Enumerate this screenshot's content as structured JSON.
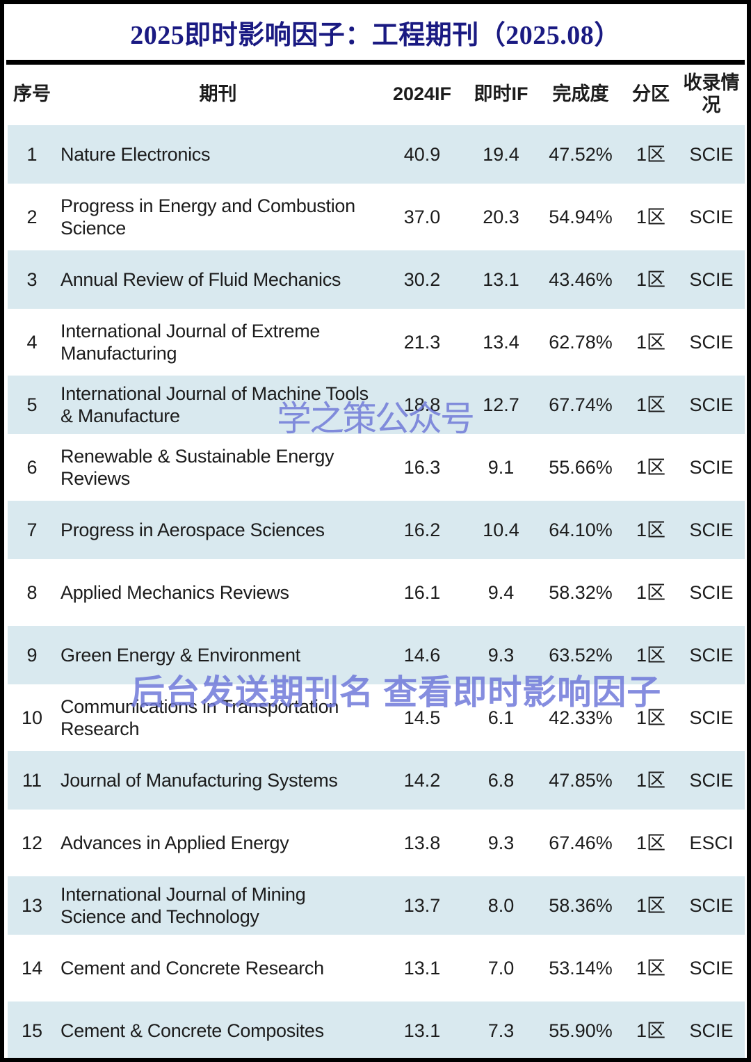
{
  "title": "2025即时影响因子：工程期刊（2025.08）",
  "watermarks": {
    "wm1": "学之策公众号",
    "wm2": "后台发送期刊名 查看即时影响因子"
  },
  "colors": {
    "title_navy": "#1a1a82",
    "row_blue": "#d9e9ef",
    "watermark_periwinkle": "#6a74d5",
    "frame_black": "#000000"
  },
  "table": {
    "headers": [
      "序号",
      "期刊",
      "2024IF",
      "即时IF",
      "完成度",
      "分区",
      "收录情况"
    ],
    "rows": [
      {
        "seq": "1",
        "journal": "Nature Electronics",
        "if2024": "40.9",
        "rt_if": "19.4",
        "completion": "47.52%",
        "zone": "1区",
        "index": "SCIE"
      },
      {
        "seq": "2",
        "journal": "Progress in Energy and Combustion Science",
        "if2024": "37.0",
        "rt_if": "20.3",
        "completion": "54.94%",
        "zone": "1区",
        "index": "SCIE"
      },
      {
        "seq": "3",
        "journal": "Annual Review of Fluid Mechanics",
        "if2024": "30.2",
        "rt_if": "13.1",
        "completion": "43.46%",
        "zone": "1区",
        "index": "SCIE"
      },
      {
        "seq": "4",
        "journal": "International Journal of Extreme Manufacturing",
        "if2024": "21.3",
        "rt_if": "13.4",
        "completion": "62.78%",
        "zone": "1区",
        "index": "SCIE"
      },
      {
        "seq": "5",
        "journal": "International Journal of Machine Tools & Manufacture",
        "if2024": "18.8",
        "rt_if": "12.7",
        "completion": "67.74%",
        "zone": "1区",
        "index": "SCIE"
      },
      {
        "seq": "6",
        "journal": "Renewable & Sustainable Energy Reviews",
        "if2024": "16.3",
        "rt_if": "9.1",
        "completion": "55.66%",
        "zone": "1区",
        "index": "SCIE"
      },
      {
        "seq": "7",
        "journal": "Progress in Aerospace Sciences",
        "if2024": "16.2",
        "rt_if": "10.4",
        "completion": "64.10%",
        "zone": "1区",
        "index": "SCIE"
      },
      {
        "seq": "8",
        "journal": "Applied Mechanics Reviews",
        "if2024": "16.1",
        "rt_if": "9.4",
        "completion": "58.32%",
        "zone": "1区",
        "index": "SCIE"
      },
      {
        "seq": "9",
        "journal": "Green Energy & Environment",
        "if2024": "14.6",
        "rt_if": "9.3",
        "completion": "63.52%",
        "zone": "1区",
        "index": "SCIE"
      },
      {
        "seq": "10",
        "journal": "Communications in Transportation Research",
        "if2024": "14.5",
        "rt_if": "6.1",
        "completion": "42.33%",
        "zone": "1区",
        "index": "SCIE"
      },
      {
        "seq": "11",
        "journal": "Journal of Manufacturing Systems",
        "if2024": "14.2",
        "rt_if": "6.8",
        "completion": "47.85%",
        "zone": "1区",
        "index": "SCIE"
      },
      {
        "seq": "12",
        "journal": "Advances in Applied Energy",
        "if2024": "13.8",
        "rt_if": "9.3",
        "completion": "67.46%",
        "zone": "1区",
        "index": "ESCI"
      },
      {
        "seq": "13",
        "journal": "International Journal of Mining Science and Technology",
        "if2024": "13.7",
        "rt_if": "8.0",
        "completion": "58.36%",
        "zone": "1区",
        "index": "SCIE"
      },
      {
        "seq": "14",
        "journal": "Cement and Concrete Research",
        "if2024": "13.1",
        "rt_if": "7.0",
        "completion": "53.14%",
        "zone": "1区",
        "index": "SCIE"
      },
      {
        "seq": "15",
        "journal": "Cement & Concrete Composites",
        "if2024": "13.1",
        "rt_if": "7.3",
        "completion": "55.90%",
        "zone": "1区",
        "index": "SCIE"
      }
    ]
  }
}
